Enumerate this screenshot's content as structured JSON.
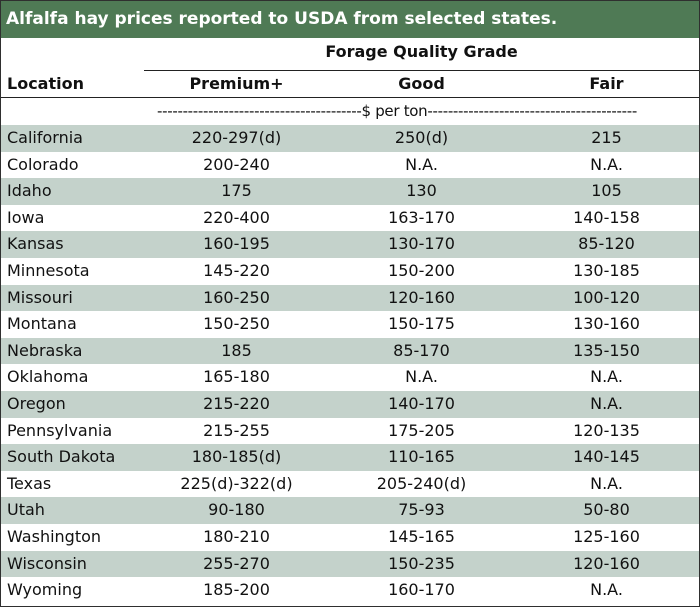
{
  "title": "Alfalfa hay prices reported to USDA from selected states.",
  "group_header": "Forage Quality Grade",
  "columns": {
    "location": "Location",
    "premium": "Premium+",
    "good": "Good",
    "fair": "Fair"
  },
  "units_row": "----------------------------------------$ per ton-----------------------------------------",
  "colors": {
    "title_bg": "#4f7a55",
    "row_shade": "#c4d2cb"
  },
  "rows": [
    {
      "location": "California",
      "premium": "220-297(d)",
      "good": "250(d)",
      "fair": "215"
    },
    {
      "location": "Colorado",
      "premium": "200-240",
      "good": "N.A.",
      "fair": "N.A."
    },
    {
      "location": "Idaho",
      "premium": "175",
      "good": "130",
      "fair": "105"
    },
    {
      "location": "Iowa",
      "premium": "220-400",
      "good": "163-170",
      "fair": "140-158"
    },
    {
      "location": "Kansas",
      "premium": "160-195",
      "good": "130-170",
      "fair": "85-120"
    },
    {
      "location": "Minnesota",
      "premium": "145-220",
      "good": "150-200",
      "fair": "130-185"
    },
    {
      "location": "Missouri",
      "premium": "160-250",
      "good": "120-160",
      "fair": "100-120"
    },
    {
      "location": "Montana",
      "premium": "150-250",
      "good": "150-175",
      "fair": "130-160"
    },
    {
      "location": "Nebraska",
      "premium": "185",
      "good": "85-170",
      "fair": "135-150"
    },
    {
      "location": "Oklahoma",
      "premium": "165-180",
      "good": "N.A.",
      "fair": "N.A."
    },
    {
      "location": "Oregon",
      "premium": "215-220",
      "good": "140-170",
      "fair": "N.A."
    },
    {
      "location": "Pennsylvania",
      "premium": "215-255",
      "good": "175-205",
      "fair": "120-135"
    },
    {
      "location": "South Dakota",
      "premium": "180-185(d)",
      "good": "110-165",
      "fair": "140-145"
    },
    {
      "location": "Texas",
      "premium": "225(d)-322(d)",
      "good": "205-240(d)",
      "fair": "N.A."
    },
    {
      "location": "Utah",
      "premium": "90-180",
      "good": "75-93",
      "fair": "50-80"
    },
    {
      "location": "Washington",
      "premium": "180-210",
      "good": "145-165",
      "fair": "125-160"
    },
    {
      "location": "Wisconsin",
      "premium": "255-270",
      "good": "150-235",
      "fair": "120-160"
    },
    {
      "location": "Wyoming",
      "premium": "185-200",
      "good": "160-170",
      "fair": "N.A."
    }
  ]
}
